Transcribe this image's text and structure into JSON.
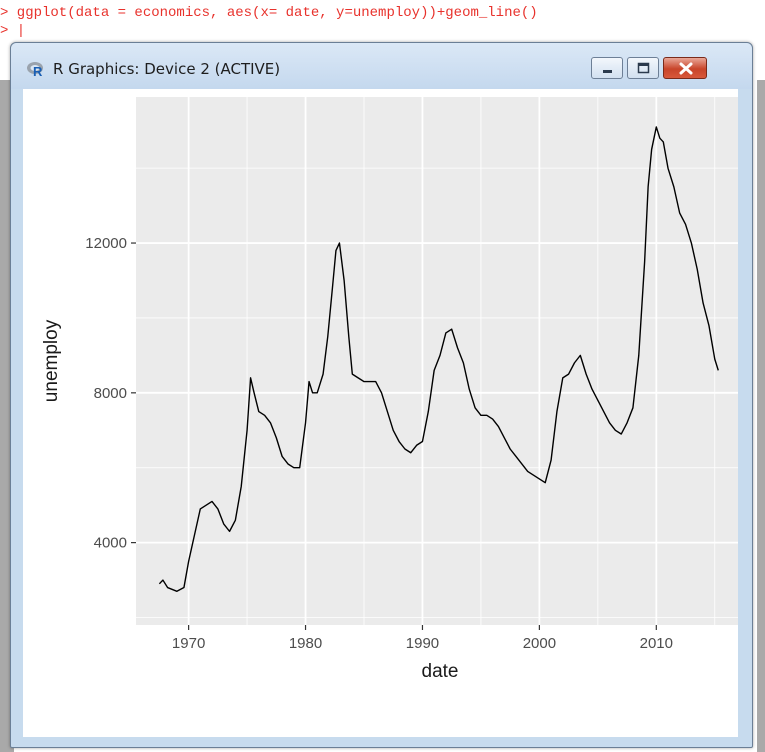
{
  "console": {
    "command": "> ggplot(data = economics, aes(x= date, y=unemploy))+geom_line()",
    "prompt": "> |"
  },
  "window": {
    "title": "R Graphics: Device 2 (ACTIVE)",
    "icon": "r-logo-icon",
    "controls": [
      "minimize-icon",
      "maximize-icon",
      "close-icon"
    ]
  },
  "chart_data": {
    "type": "line",
    "xlabel": "date",
    "ylabel": "unemploy",
    "xlim": [
      1965.5,
      2017.5
    ],
    "ylim": [
      1800,
      15900
    ],
    "x_ticks": [
      1970,
      1980,
      1990,
      2000,
      2010
    ],
    "x_tick_labels": [
      "1970",
      "1980",
      "1990",
      "2000",
      "2010"
    ],
    "y_ticks": [
      4000,
      8000,
      12000
    ],
    "y_tick_labels": [
      "4000",
      "8000",
      "12000"
    ],
    "grid": true,
    "line_color": "#000000",
    "panel_color": "#ebebeb",
    "series": [
      {
        "x": [
          1967.5,
          1967.8,
          1968.2,
          1968.6,
          1969.0,
          1969.6,
          1970.0,
          1970.5,
          1971.0,
          1971.5,
          1972.0,
          1972.5,
          1973.0,
          1973.5,
          1974.0,
          1974.5,
          1975.0,
          1975.3,
          1975.6,
          1976.0,
          1976.5,
          1977.0,
          1977.5,
          1978.0,
          1978.5,
          1979.0,
          1979.5,
          1980.0,
          1980.3,
          1980.6,
          1981.0,
          1981.5,
          1981.9,
          1982.3,
          1982.6,
          1982.9,
          1983.3,
          1983.7,
          1984.0,
          1984.5,
          1985.0,
          1985.5,
          1986.0,
          1986.5,
          1987.0,
          1987.5,
          1988.0,
          1988.5,
          1989.0,
          1989.5,
          1990.0,
          1990.5,
          1991.0,
          1991.5,
          1992.0,
          1992.5,
          1993.0,
          1993.5,
          1994.0,
          1994.5,
          1995.0,
          1995.5,
          1996.0,
          1996.5,
          1997.0,
          1997.5,
          1998.0,
          1998.5,
          1999.0,
          1999.5,
          2000.0,
          2000.5,
          2001.0,
          2001.5,
          2002.0,
          2002.5,
          2003.0,
          2003.5,
          2004.0,
          2004.5,
          2005.0,
          2005.5,
          2006.0,
          2006.5,
          2007.0,
          2007.5,
          2008.0,
          2008.5,
          2009.0,
          2009.3,
          2009.6,
          2010.0,
          2010.3,
          2010.6,
          2011.0,
          2011.5,
          2012.0,
          2012.5,
          2013.0,
          2013.5,
          2014.0,
          2014.5,
          2015.0,
          2015.3
        ],
        "y": [
          2900,
          3000,
          2800,
          2750,
          2700,
          2800,
          3500,
          4200,
          4900,
          5000,
          5100,
          4900,
          4500,
          4300,
          4600,
          5500,
          7000,
          8400,
          8000,
          7500,
          7400,
          7200,
          6800,
          6300,
          6100,
          6000,
          6000,
          7200,
          8300,
          8000,
          8000,
          8500,
          9500,
          10800,
          11800,
          12000,
          11000,
          9500,
          8500,
          8400,
          8300,
          8300,
          8300,
          8000,
          7500,
          7000,
          6700,
          6500,
          6400,
          6600,
          6700,
          7500,
          8600,
          9000,
          9600,
          9700,
          9200,
          8800,
          8100,
          7600,
          7400,
          7400,
          7300,
          7100,
          6800,
          6500,
          6300,
          6100,
          5900,
          5800,
          5700,
          5600,
          6200,
          7500,
          8400,
          8500,
          8800,
          9000,
          8500,
          8100,
          7800,
          7500,
          7200,
          7000,
          6900,
          7200,
          7600,
          9000,
          11500,
          13500,
          14500,
          15100,
          14800,
          14700,
          14000,
          13500,
          12800,
          12500,
          12000,
          11300,
          10400,
          9800,
          8900,
          8600
        ]
      }
    ]
  }
}
